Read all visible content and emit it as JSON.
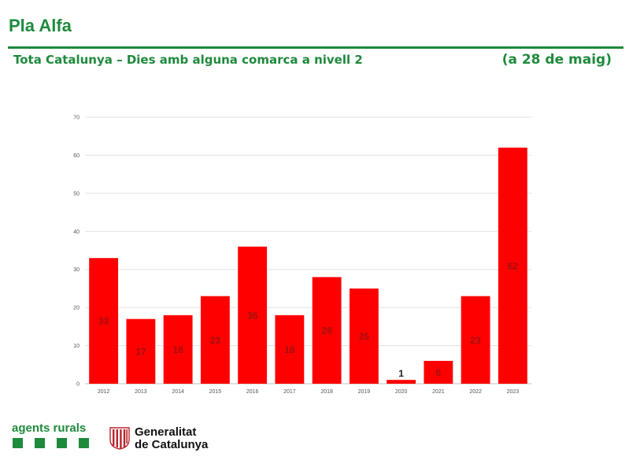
{
  "header": {
    "title": "Pla Alfa",
    "subtitle": "Tota Catalunya – Dies amb alguna comarca a nivell 2",
    "date_note": "(a 28 de maig)"
  },
  "colors": {
    "brand_green": "#1e8a3c",
    "bar": "#ff0000"
  },
  "chart_data": {
    "type": "bar",
    "categories": [
      "2012",
      "2013",
      "2014",
      "2015",
      "2016",
      "2017",
      "2018",
      "2019",
      "2020",
      "2021",
      "2022",
      "2023"
    ],
    "values": [
      33,
      17,
      18,
      23,
      36,
      18,
      28,
      25,
      1,
      6,
      23,
      62
    ],
    "data_labels": [
      "33",
      "17",
      "18",
      "23",
      "36",
      "18",
      "28",
      "25",
      "1",
      "6",
      "23",
      "62"
    ],
    "y_ticks": [
      "0",
      "10",
      "20",
      "30",
      "40",
      "50",
      "60",
      "70"
    ],
    "ylim": [
      0,
      70
    ],
    "grid": true,
    "legend": "none"
  },
  "footer": {
    "agents_logo_text": "agents rurals",
    "generalitat_line1": "Generalitat",
    "generalitat_line2": "de Catalunya"
  }
}
